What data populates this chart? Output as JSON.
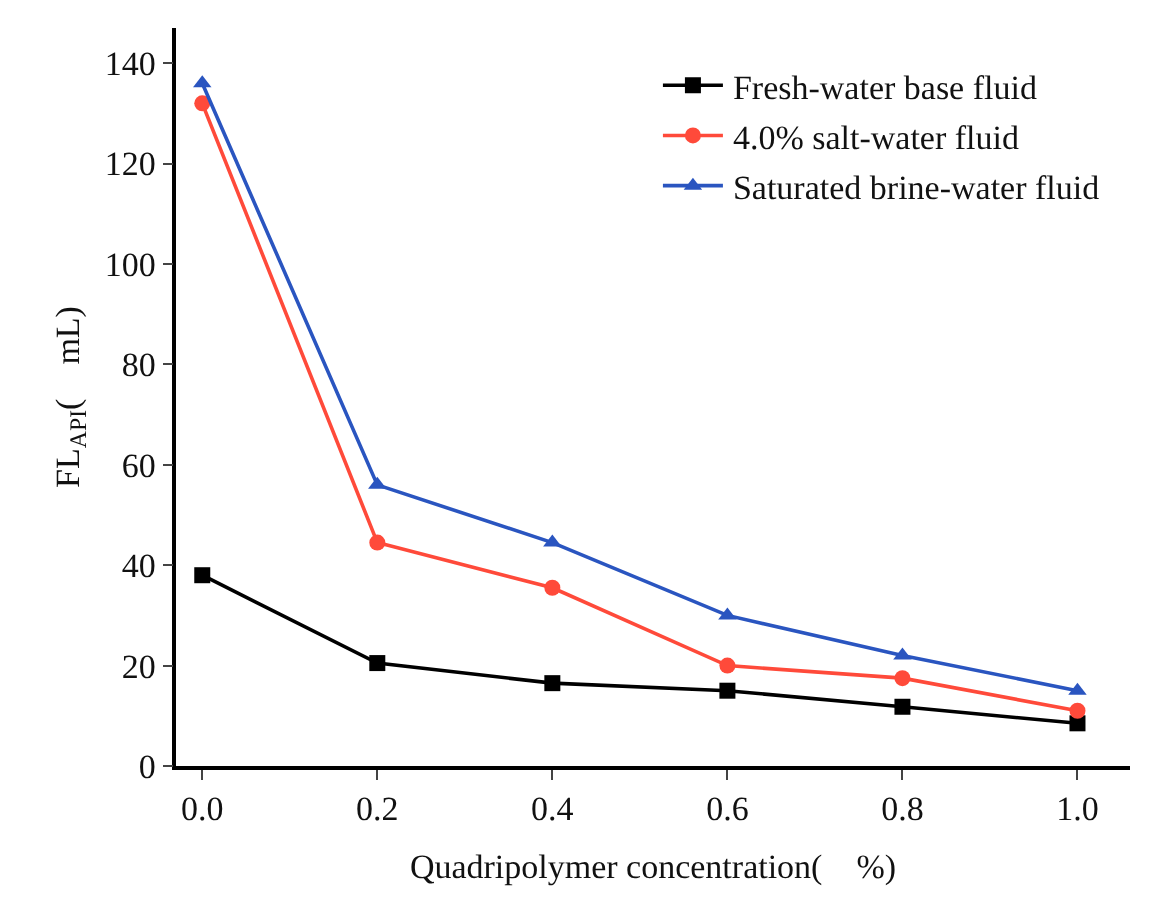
{
  "chart_data": {
    "type": "line",
    "xlabel": "Quadripolymer concentration(　%)",
    "ylabel": "FL$_{API}$(　mL)",
    "x": [
      0.0,
      0.2,
      0.4,
      0.6,
      0.8,
      1.0
    ],
    "series": [
      {
        "name": "Fresh-water base fluid",
        "color": "#000000",
        "marker": "square",
        "values": [
          38,
          20.5,
          16.5,
          15,
          11.8,
          8.5
        ]
      },
      {
        "name": "4.0% salt-water fluid",
        "color": "#ff4a3a",
        "marker": "circle",
        "values": [
          132,
          44.5,
          35.5,
          20,
          17.5,
          11
        ]
      },
      {
        "name": "Saturated brine-water fluid",
        "color": "#2a55c0",
        "marker": "triangle",
        "values": [
          136,
          56,
          44.5,
          30,
          22,
          15
        ]
      }
    ],
    "xlim": [
      -0.03,
      1.06
    ],
    "xticks": [
      {
        "value": 0,
        "label": "0.0"
      },
      0.2,
      0.4,
      0.6,
      0.8,
      {
        "value": 1,
        "label": "1.0"
      }
    ],
    "ylim": [
      0,
      147
    ],
    "yticks": [
      0,
      20,
      40,
      60,
      80,
      100,
      120,
      140
    ],
    "grid": false,
    "legend": "top right",
    "line_style": "solid"
  }
}
